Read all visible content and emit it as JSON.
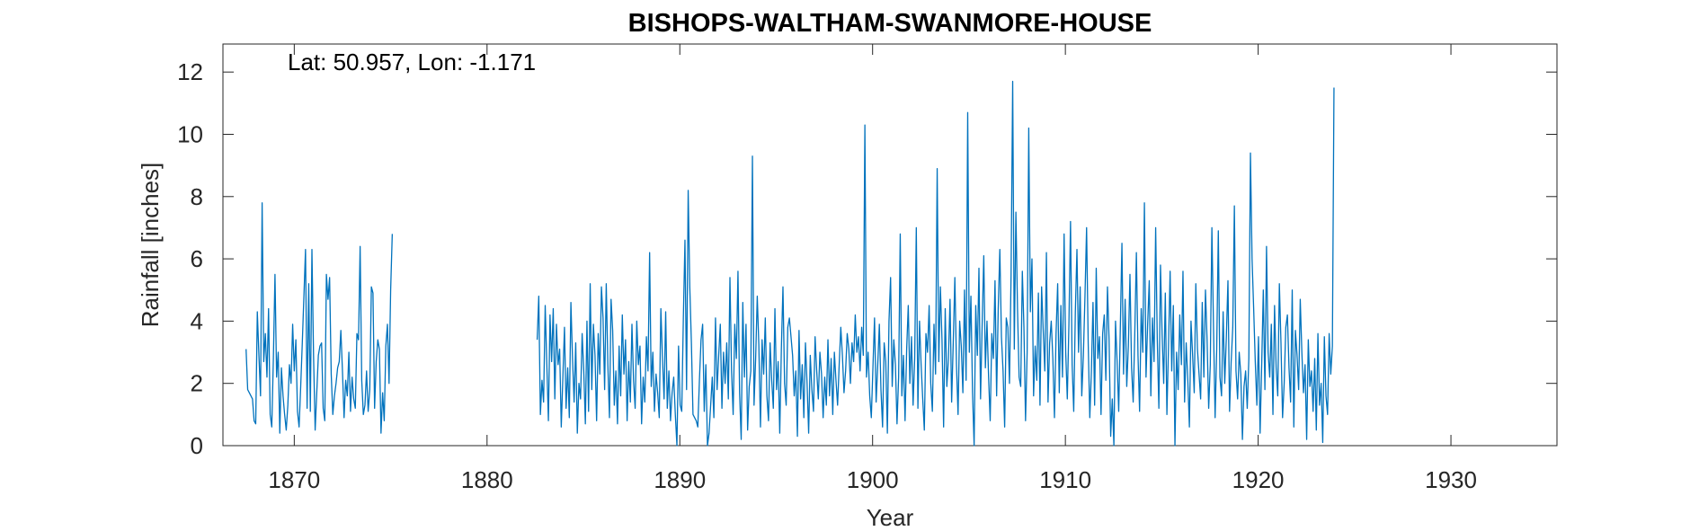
{
  "chart_data": {
    "type": "line",
    "title": "BISHOPS-WALTHAM-SWANMORE-HOUSE",
    "xlabel": "Year",
    "ylabel": "Rainfall [inches]",
    "annotation": "Lat: 50.957, Lon: -1.171",
    "xlim": [
      1866.3,
      1935.5
    ],
    "ylim": [
      0,
      12.9
    ],
    "xticks": [
      1870,
      1880,
      1890,
      1900,
      1910,
      1920,
      1930
    ],
    "yticks": [
      0,
      2,
      4,
      6,
      8,
      10,
      12
    ],
    "grid": false,
    "line_color": "#0072BD",
    "series": [
      {
        "segments": [
          {
            "x_start": 1867.5,
            "x_step": 0.0833333,
            "values": [
              3.1,
              1.8,
              1.7,
              1.6,
              1.5,
              0.8,
              0.7,
              4.3,
              2.9,
              1.6,
              7.8,
              2.7,
              3.6,
              2.2,
              4.4,
              1.0,
              0.6,
              2.8,
              5.5,
              2.2,
              3.0,
              0.4,
              2.5,
              1.6,
              1.0,
              0.5,
              1.3,
              2.6,
              2.0,
              3.9,
              2.4,
              3.4,
              1.1,
              0.6,
              1.9,
              3.3,
              4.8,
              6.3,
              1.2,
              5.2,
              1.1,
              6.3,
              2.9,
              0.5,
              1.7,
              2.9,
              3.2,
              3.3,
              1.2,
              0.8,
              5.5,
              4.7,
              5.4,
              2.3,
              1.0,
              1.6,
              2.0,
              2.5,
              2.7,
              3.7,
              2.4,
              0.9,
              2.1,
              1.6,
              3.0,
              1.1,
              2.2,
              1.5,
              1.2,
              3.6,
              3.4,
              6.4,
              2.1,
              1.0,
              1.3,
              2.4,
              1.1,
              1.8,
              5.1,
              4.9,
              1.2,
              2.7,
              3.4,
              3.1,
              0.4,
              1.7,
              0.8,
              3.2,
              3.9,
              2.0,
              5.0,
              6.8
            ]
          },
          {
            "x_start": 1882.6,
            "x_step": 0.0833333,
            "values": [
              3.4,
              4.8,
              1.0,
              2.1,
              1.4,
              4.5,
              2.6,
              0.8,
              4.2,
              2.7,
              4.4,
              1.5,
              3.9,
              2.6,
              3.1,
              0.6,
              2.2,
              3.8,
              1.2,
              2.5,
              0.9,
              4.6,
              2.8,
              1.4,
              3.3,
              0.4,
              2.0,
              1.5,
              3.6,
              2.4,
              0.7,
              4.0,
              1.1,
              5.2,
              1.8,
              3.9,
              2.9,
              0.8,
              3.6,
              2.3,
              5.1,
              4.1,
              1.8,
              5.2,
              2.6,
              0.9,
              4.7,
              3.7,
              1.3,
              2.4,
              0.7,
              3.2,
              1.6,
              4.2,
              2.3,
              3.4,
              0.8,
              2.7,
              1.4,
              3.9,
              2.1,
              1.2,
              4.0,
              2.6,
              3.2,
              0.7,
              2.2,
              1.4,
              3.5,
              2.4,
              6.2,
              1.9,
              3.0,
              1.1,
              2.3,
              1.7,
              0.9,
              4.4,
              2.8,
              1.5,
              4.3,
              1.2,
              2.4,
              0.8,
              1.7,
              2.2,
              1.0,
              0.0,
              3.2,
              1.3,
              1.1,
              4.1,
              6.6,
              1.8,
              8.2,
              5.1,
              3.3,
              1.0,
              0.9,
              0.8,
              0.6,
              2.1,
              3.4,
              3.9,
              1.1,
              2.6,
              0.0,
              0.4,
              1.3,
              2.2,
              0.9,
              4.1,
              1.8,
              2.9,
              3.9,
              1.2,
              3.0,
              2.0,
              3.3,
              1.5,
              5.4,
              2.4,
              1.0,
              3.9,
              2.8,
              5.6,
              1.7,
              0.2,
              4.6,
              2.2,
              3.9,
              0.5,
              1.9,
              2.4,
              9.3,
              1.3,
              2.8,
              4.8,
              3.2,
              0.6,
              3.4,
              2.3,
              4.1,
              1.6,
              0.8,
              3.3,
              2.1,
              1.2,
              4.4,
              1.8,
              2.7,
              0.4,
              3.1,
              5.1,
              2.0,
              1.3,
              3.8,
              4.1,
              3.5,
              2.9,
              1.6,
              2.4,
              0.3,
              3.7,
              1.5,
              2.6,
              0.9,
              3.3,
              2.0,
              0.4,
              2.9,
              1.8,
              1.1,
              3.5,
              2.4,
              1.5,
              3.0,
              2.3,
              0.9,
              2.2,
              1.3,
              3.4,
              1.6,
              2.8,
              1.0,
              3.0,
              2.1,
              1.3,
              2.6,
              3.8,
              2.9,
              1.7,
              2.4,
              3.6,
              3.1,
              2.0,
              3.3,
              2.7,
              4.2,
              3.0,
              3.5,
              2.4,
              3.8,
              2.9,
              10.3,
              2.2,
              3.0,
              1.6,
              0.9,
              2.5,
              4.1,
              1.4,
              2.6,
              3.9,
              1.8,
              0.6,
              3.3,
              2.7,
              0.4,
              4.0,
              5.4,
              1.9,
              3.4,
              2.6,
              0.7,
              2.2,
              6.8,
              1.6,
              2.9,
              0.8,
              3.1,
              4.5,
              2.0,
              3.5,
              1.3,
              2.8,
              7.0,
              1.2,
              4.0,
              2.6,
              1.5,
              0.5,
              3.6,
              3.0,
              4.5,
              2.0,
              1.1,
              3.9,
              2.3,
              8.9,
              2.7,
              5.1,
              3.4,
              0.6,
              4.4,
              1.9,
              2.8,
              4.7,
              1.4,
              3.3,
              5.4,
              2.6,
              1.0,
              4.0,
              3.2,
              1.7,
              5.0,
              2.1,
              10.7,
              3.0,
              4.8,
              1.7,
              0.0,
              4.5,
              2.9,
              5.7,
              1.5,
              3.9,
              6.1,
              2.5,
              4.0,
              2.2,
              0.8,
              3.6,
              2.8,
              5.3,
              1.6,
              4.4,
              6.3,
              3.5,
              2.4,
              0.6,
              4.1,
              3.8,
              2.0,
              5.5,
              11.7,
              3.1,
              7.5,
              4.4,
              2.2,
              1.9,
              5.6,
              3.8,
              0.8,
              3.0,
              10.2,
              4.3,
              6.0,
              1.6,
              3.2,
              2.1,
              4.9,
              1.3,
              5.1,
              3.7,
              2.4,
              6.2,
              1.4,
              3.3,
              4.0,
              2.8,
              0.9,
              3.6,
              5.2,
              1.7,
              4.5,
              2.2,
              6.8,
              3.0,
              1.5,
              3.9,
              7.2,
              2.6,
              1.1,
              4.3,
              6.3,
              3.0,
              5.1,
              1.6,
              2.9,
              4.8,
              7.0,
              3.3,
              0.9,
              2.4,
              4.6,
              1.3,
              5.7,
              2.8,
              3.5,
              1.0,
              3.6,
              4.2,
              2.1,
              5.1,
              3.4,
              0.3,
              1.5,
              0.0,
              4.0,
              2.7,
              1.1,
              3.8,
              6.5,
              2.3,
              4.7,
              1.9,
              3.2,
              5.5,
              2.5,
              1.4,
              3.6,
              6.2,
              2.9,
              1.1,
              4.4,
              3.0,
              7.8,
              2.2,
              3.9,
              5.3,
              1.6,
              4.1,
              2.7,
              7.0,
              3.4,
              1.2,
              5.8,
              3.6,
              2.0,
              4.9,
              1.0,
              3.2,
              5.6,
              2.4,
              4.5,
              0.0,
              3.0,
              1.8,
              4.2,
              2.6,
              5.6,
              1.4,
              3.3,
              2.1,
              0.6,
              4.0,
              2.9,
              1.7,
              5.2,
              3.1,
              2.3,
              1.5,
              4.6,
              2.2,
              5.0,
              3.4,
              1.2,
              2.6,
              7.0,
              3.8,
              0.9,
              3.1,
              6.9,
              2.2,
              1.6,
              4.3,
              2.0,
              3.5,
              5.3,
              1.1,
              2.7,
              3.8,
              7.7,
              2.4,
              1.5,
              3.0,
              2.3,
              0.2,
              1.9,
              2.4,
              1.2,
              2.8,
              9.4,
              6.0,
              4.4,
              2.7,
              1.3,
              3.5,
              0.4,
              2.6,
              5.0,
              1.8,
              6.4,
              3.0,
              2.2,
              3.9,
              1.0,
              4.5,
              2.5,
              1.6,
              5.2,
              3.3,
              0.9,
              2.0,
              3.8,
              4.2,
              2.5,
              1.4,
              5.0,
              0.6,
              3.7,
              2.9,
              1.8,
              4.7,
              3.0,
              1.7,
              2.6,
              0.2,
              3.4,
              1.9,
              2.4,
              1.1,
              2.8,
              0.5,
              3.6,
              1.3,
              2.0,
              0.1,
              3.5,
              1.6,
              1.0,
              3.6,
              2.3,
              3.2,
              11.5
            ]
          }
        ]
      }
    ]
  }
}
